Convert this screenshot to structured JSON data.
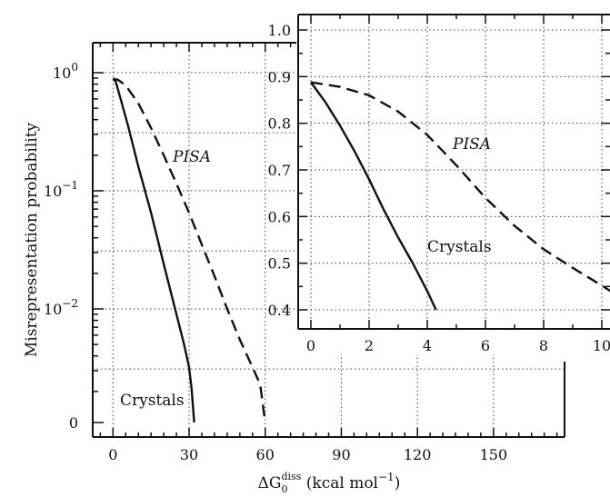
{
  "chart_data": [
    {
      "panel": "main",
      "type": "line",
      "xlabel_prefix": "ΔG",
      "xlabel_sub": "0",
      "xlabel_sup": "diss",
      "xlabel_unit": "(kcal mol",
      "xlabel_unit_exp": "−1",
      "xlabel_unit_close": ")",
      "ylabel": "Misrepresentation probability",
      "xlim": [
        -8,
        178
      ],
      "x_ticks": [
        0,
        30,
        60,
        90,
        120,
        150
      ],
      "x_tick_labels": [
        "0",
        "30",
        "60",
        "90",
        "120",
        "150"
      ],
      "y_scale": "log (with zero)",
      "y_ticks": [
        1,
        0.1,
        0.01,
        0
      ],
      "y_tick_labels": [
        {
          "base": "10",
          "exp": "0"
        },
        {
          "base": "10",
          "exp": "−1"
        },
        {
          "base": "10",
          "exp": "−2"
        },
        {
          "base": "0",
          "exp": ""
        }
      ],
      "grid": true,
      "series": [
        {
          "name": "Crystals",
          "style": "solid",
          "points": [
            [
              0,
              0.89
            ],
            [
              1,
              0.85
            ],
            [
              3,
              0.6
            ],
            [
              6,
              0.35
            ],
            [
              10,
              0.16
            ],
            [
              15,
              0.065
            ],
            [
              20,
              0.024
            ],
            [
              25,
              0.009
            ],
            [
              28,
              0.005
            ],
            [
              30,
              0.0032
            ],
            [
              31,
              0.0021
            ],
            [
              32,
              0
            ]
          ]
        },
        {
          "name": "PISA",
          "style": "dashed",
          "points": [
            [
              0,
              0.89
            ],
            [
              2,
              0.87
            ],
            [
              5,
              0.78
            ],
            [
              10,
              0.55
            ],
            [
              15,
              0.34
            ],
            [
              20,
              0.2
            ],
            [
              25,
              0.115
            ],
            [
              30,
              0.065
            ],
            [
              35,
              0.035
            ],
            [
              40,
              0.019
            ],
            [
              45,
              0.01
            ],
            [
              50,
              0.0055
            ],
            [
              55,
              0.0032
            ],
            [
              58,
              0.0023
            ],
            [
              60,
              0
            ]
          ]
        }
      ]
    },
    {
      "panel": "inset",
      "type": "line",
      "xlim": [
        -0.3,
        10.3
      ],
      "ylim": [
        0.38,
        1.03
      ],
      "x_ticks": [
        0,
        2,
        4,
        6,
        8,
        10
      ],
      "x_tick_labels": [
        "0",
        "2",
        "4",
        "6",
        "8",
        "10"
      ],
      "y_ticks": [
        0.4,
        0.5,
        0.6,
        0.7,
        0.8,
        0.9,
        1.0
      ],
      "y_tick_labels": [
        "0.4",
        "0.5",
        "0.6",
        "0.7",
        "0.8",
        "0.9",
        "1.0"
      ],
      "grid": true,
      "series": [
        {
          "name": "Crystals",
          "style": "solid",
          "points": [
            [
              0,
              0.888
            ],
            [
              0.5,
              0.845
            ],
            [
              1,
              0.795
            ],
            [
              1.5,
              0.74
            ],
            [
              2,
              0.68
            ],
            [
              2.5,
              0.615
            ],
            [
              3,
              0.555
            ],
            [
              3.5,
              0.5
            ],
            [
              4,
              0.44
            ],
            [
              4.3,
              0.4
            ]
          ]
        },
        {
          "name": "PISA",
          "style": "dashed",
          "points": [
            [
              0,
              0.888
            ],
            [
              1,
              0.878
            ],
            [
              2,
              0.86
            ],
            [
              3,
              0.825
            ],
            [
              4,
              0.775
            ],
            [
              5,
              0.71
            ],
            [
              6,
              0.64
            ],
            [
              7,
              0.58
            ],
            [
              8,
              0.53
            ],
            [
              9,
              0.49
            ],
            [
              10,
              0.452
            ],
            [
              10.3,
              0.44
            ]
          ]
        }
      ]
    }
  ]
}
